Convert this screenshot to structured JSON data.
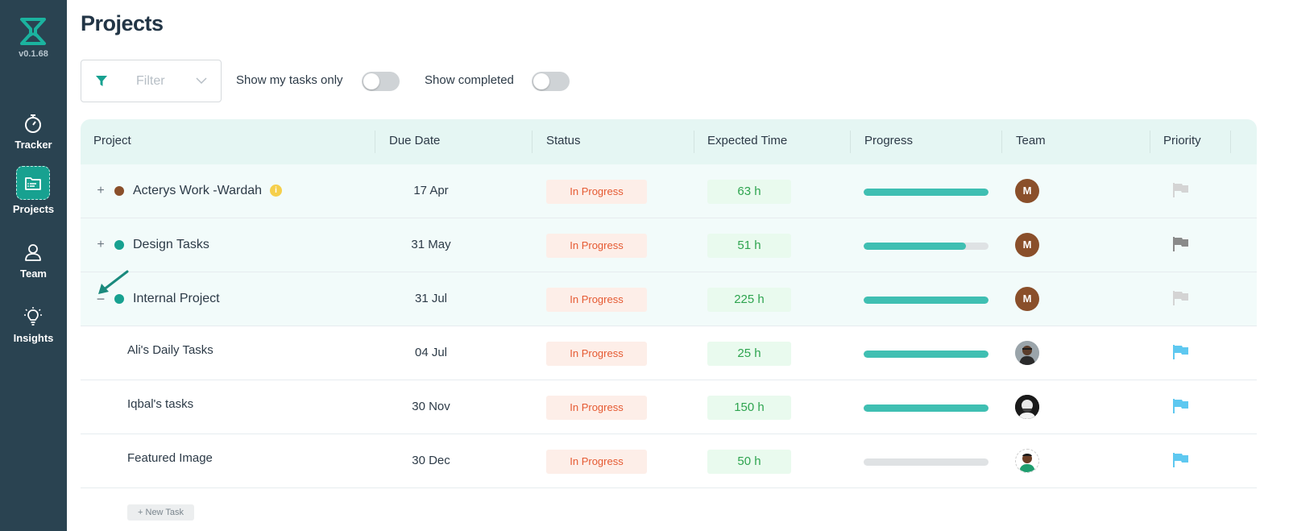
{
  "app": {
    "version": "v0.1.68",
    "brand_color": "#17a190",
    "sidebar_color": "#2a4351"
  },
  "nav": [
    {
      "label": "Tracker",
      "icon": "stopwatch-icon",
      "active": false
    },
    {
      "label": "Projects",
      "icon": "projects-list-icon",
      "active": true
    },
    {
      "label": "Team",
      "icon": "user-icon",
      "active": false
    },
    {
      "label": "Insights",
      "icon": "lightbulb-icon",
      "active": false
    }
  ],
  "header": {
    "title": "Projects",
    "filter_placeholder": "Filter",
    "show_my_tasks_label": "Show my tasks only",
    "show_completed_label": "Show completed",
    "show_my_tasks_on": false,
    "show_completed_on": false
  },
  "table": {
    "columns": [
      "Project",
      "Due Date",
      "Status",
      "Expected Time",
      "Progress",
      "Team",
      "Priority"
    ],
    "rows": [
      {
        "type": "parent",
        "expander": "+",
        "dot_color": "#8a4f2a",
        "name": "Acterys Work -Wardah",
        "info_badge": "i",
        "due": "17 Apr",
        "status": "In Progress",
        "expected": "63 h",
        "progress": 1.0,
        "avatar": "M",
        "flag_color": "#d4d4d4"
      },
      {
        "type": "parent",
        "expander": "+",
        "dot_color": "#17a190",
        "name": "Design Tasks",
        "due": "31 May",
        "status": "In Progress",
        "expected": "51 h",
        "progress": 0.82,
        "avatar": "M",
        "flag_color": "#8a8a8a"
      },
      {
        "type": "parent",
        "expander": "−",
        "dot_color": "#17a190",
        "name": "Internal Project",
        "due": "31 Jul",
        "status": "In Progress",
        "expected": "225 h",
        "progress": 1.0,
        "avatar": "M",
        "flag_color": "#d4d4d4"
      },
      {
        "type": "child",
        "name": "Ali's Daily Tasks",
        "due": "04 Jul",
        "status": "In Progress",
        "expected": "25 h",
        "progress": 1.0,
        "flag_color": "#5ec8f0"
      },
      {
        "type": "child",
        "name": "Iqbal's tasks",
        "due": "30 Nov",
        "status": "In Progress",
        "expected": "150 h",
        "progress": 1.0,
        "flag_color": "#5ec8f0"
      },
      {
        "type": "child",
        "name": "Featured Image",
        "due": "30 Dec",
        "status": "In Progress",
        "expected": "50 h",
        "progress": 0.0,
        "flag_color": "#5ec8f0"
      }
    ],
    "new_task_label": "+ New Task"
  }
}
